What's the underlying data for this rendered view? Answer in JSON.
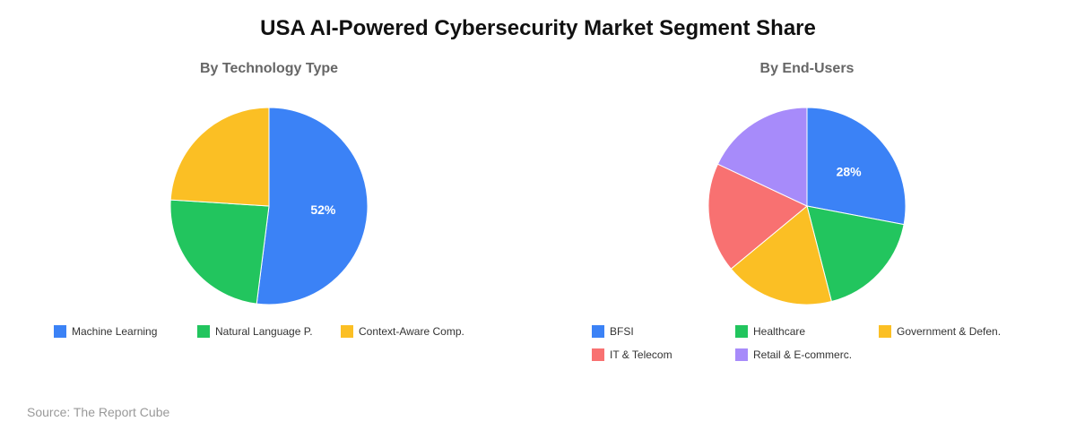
{
  "title": "USA AI-Powered Cybersecurity Market Segment Share",
  "source": "Source: The Report Cube",
  "chart_data": [
    {
      "type": "pie",
      "title": "By Technology Type",
      "categories": [
        "Machine Learning",
        "Natural Language P.",
        "Context-Aware Comp."
      ],
      "values": [
        52,
        24,
        24
      ],
      "colors": [
        "#3b82f6",
        "#22c55e",
        "#fbbf24"
      ],
      "data_labels": [
        "52%",
        "",
        ""
      ],
      "legend": "bottom"
    },
    {
      "type": "pie",
      "title": "By End-Users",
      "categories": [
        "BFSI",
        "Healthcare",
        "Government & Defen.",
        "IT & Telecom",
        "Retail & E-commerc."
      ],
      "values": [
        28,
        18,
        18,
        18,
        18
      ],
      "colors": [
        "#3b82f6",
        "#22c55e",
        "#fbbf24",
        "#f87171",
        "#a78bfa"
      ],
      "data_labels": [
        "28%",
        "",
        "",
        "",
        ""
      ],
      "legend": "bottom"
    }
  ]
}
